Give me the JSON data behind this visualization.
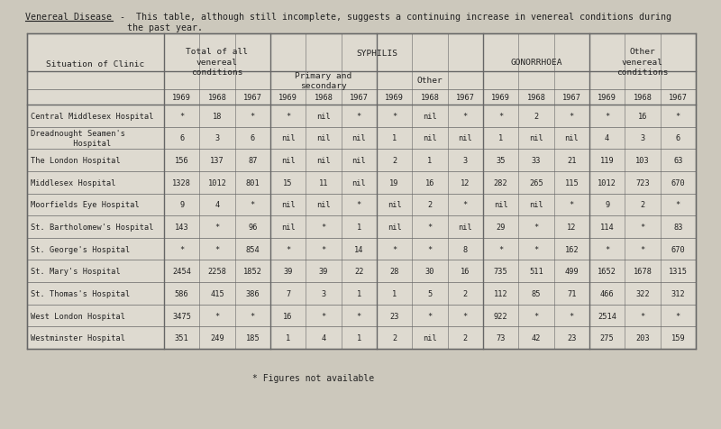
{
  "title_underlined": "Venereal Disease",
  "title_rest": " -  This table, although still incomplete, suggests a continuing increase in venereal conditions during",
  "title_line2": "               the past year.",
  "page_bg": "#ccc8bc",
  "table_bg": "#dedad0",
  "table_border": "#666666",
  "text_color": "#222222",
  "footnote": "* Figures not available",
  "hospitals": [
    "Central Middlesex Hospital",
    "Dreadnought Seamen's\n         Hospital",
    "The London Hospital",
    "Middlesex Hospital",
    "Moorfields Eye Hospital",
    "St. Bartholomew's Hospital",
    "St. George's Hospital",
    "St. Mary's Hospital",
    "St. Thomas's Hospital",
    "West London Hospital",
    "Westminster Hospital"
  ],
  "data": [
    [
      "*",
      "18",
      "*",
      "*",
      "nil",
      "*",
      "*",
      "nil",
      "*",
      "*",
      "2",
      "*",
      "*",
      "16",
      "*"
    ],
    [
      "6",
      "3",
      "6",
      "nil",
      "nil",
      "nil",
      "1",
      "nil",
      "nil",
      "1",
      "nil",
      "nil",
      "4",
      "3",
      "6"
    ],
    [
      "156",
      "137",
      "87",
      "nil",
      "nil",
      "nil",
      "2",
      "1",
      "3",
      "35",
      "33",
      "21",
      "119",
      "103",
      "63"
    ],
    [
      "1328",
      "1012",
      "801",
      "15",
      "11",
      "nil",
      "19",
      "16",
      "12",
      "282",
      "265",
      "115",
      "1012",
      "723",
      "670"
    ],
    [
      "9",
      "4",
      "*",
      "nil",
      "nil",
      "*",
      "nil",
      "2",
      "*",
      "nil",
      "nil",
      "*",
      "9",
      "2",
      "*"
    ],
    [
      "143",
      "*",
      "96",
      "nil",
      "*",
      "1",
      "nil",
      "*",
      "nil",
      "29",
      "*",
      "12",
      "114",
      "*",
      "83"
    ],
    [
      "*",
      "*",
      "854",
      "*",
      "*",
      "14",
      "*",
      "*",
      "8",
      "*",
      "*",
      "162",
      "*",
      "*",
      "670"
    ],
    [
      "2454",
      "2258",
      "1852",
      "39",
      "39",
      "22",
      "28",
      "30",
      "16",
      "735",
      "511",
      "499",
      "1652",
      "1678",
      "1315"
    ],
    [
      "586",
      "415",
      "386",
      "7",
      "3",
      "1",
      "1",
      "5",
      "2",
      "112",
      "85",
      "71",
      "466",
      "322",
      "312"
    ],
    [
      "3475",
      "*",
      "*",
      "16",
      "*",
      "*",
      "23",
      "*",
      "*",
      "922",
      "*",
      "*",
      "2514",
      "*",
      "*"
    ],
    [
      "351",
      "249",
      "185",
      "1",
      "4",
      "1",
      "2",
      "nil",
      "2",
      "73",
      "42",
      "23",
      "275",
      "203",
      "159"
    ]
  ],
  "figwidth": 8.0,
  "figheight": 4.77,
  "dpi": 100
}
